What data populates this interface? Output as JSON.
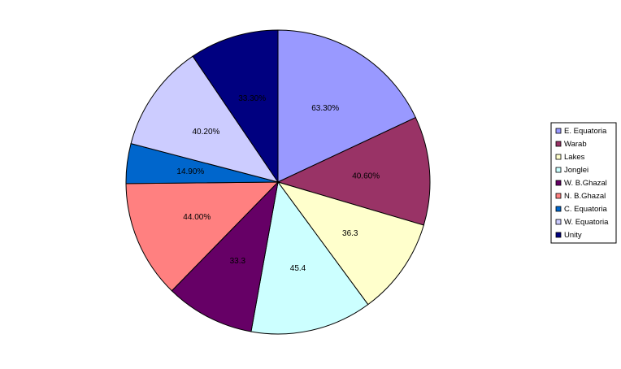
{
  "chart_data": {
    "type": "pie",
    "title": "",
    "legend_placement": "right",
    "slices": [
      {
        "name": "E. Equatoria",
        "label": "63.30%",
        "value": 63.3,
        "color": "#9999FF"
      },
      {
        "name": "Warab",
        "label": "40.60%",
        "value": 40.6,
        "color": "#993366"
      },
      {
        "name": "Lakes",
        "label": "36.3",
        "value": 36.3,
        "color": "#FFFFCC"
      },
      {
        "name": "Jonglei",
        "label": "45.4",
        "value": 45.4,
        "color": "#CCFFFF"
      },
      {
        "name": "W. B.Ghazal",
        "label": "33.3",
        "value": 33.3,
        "color": "#660066"
      },
      {
        "name": "N. B.Ghazal",
        "label": "44.00%",
        "value": 44.0,
        "color": "#FF8080"
      },
      {
        "name": "C. Equatoria",
        "label": "14.90%",
        "value": 14.9,
        "color": "#0066CC"
      },
      {
        "name": "W. Equatoria",
        "label": "40.20%",
        "value": 40.2,
        "color": "#CCCCFF"
      },
      {
        "name": "Unity",
        "label": "33.30%",
        "value": 33.3,
        "color": "#000080"
      }
    ]
  }
}
